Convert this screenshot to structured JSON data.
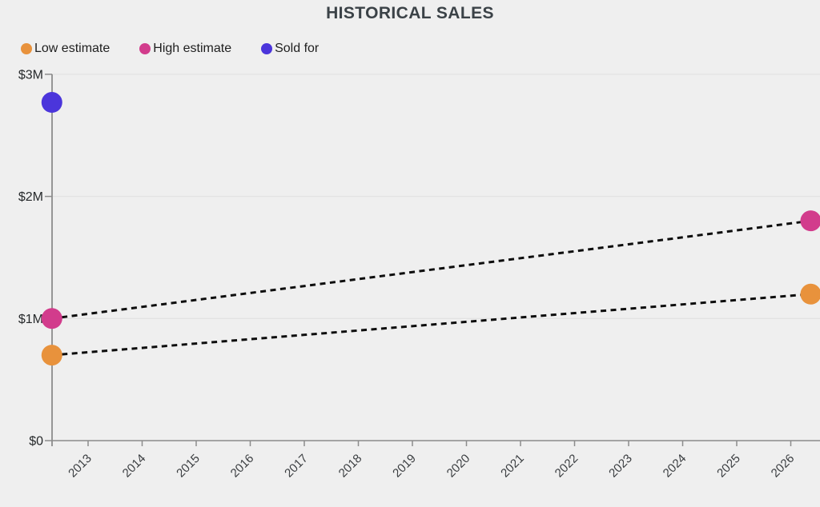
{
  "page": {
    "background": "#EFEFEF"
  },
  "chart_data": {
    "type": "scatter",
    "title": "HISTORICAL SALES",
    "xlabel": "",
    "ylabel": "",
    "x_tick_labels": [
      "2013",
      "2014",
      "2015",
      "2016",
      "2017",
      "2018",
      "2019",
      "2020",
      "2021",
      "2022",
      "2023",
      "2024",
      "2025",
      "2026"
    ],
    "y_tick_labels": [
      "$0",
      "$1M",
      "$2M",
      "$3M"
    ],
    "y_tick_values_millions": [
      0,
      1,
      2,
      3
    ],
    "ylim_millions": [
      0,
      3
    ],
    "grid": "horizontal",
    "legend_position": "top-left",
    "connector_line": {
      "color": "#0D0D0D",
      "style": "dashed"
    },
    "axis_color": "#8C8C8C",
    "gridline_color": "#E3E3E3",
    "series": [
      {
        "name": "Low estimate",
        "color": "#E8923C",
        "style": "dashed-line-with-dots",
        "points": [
          {
            "year": 2012.33,
            "value_usd_millions": 0.7
          },
          {
            "year": 2026.37,
            "value_usd_millions": 1.2
          }
        ]
      },
      {
        "name": "High estimate",
        "color": "#D23C8C",
        "style": "dashed-line-with-dots",
        "points": [
          {
            "year": 2012.33,
            "value_usd_millions": 1.0
          },
          {
            "year": 2026.37,
            "value_usd_millions": 1.8
          }
        ]
      },
      {
        "name": "Sold for",
        "color": "#4B35DB",
        "style": "dot-only",
        "points": [
          {
            "year": 2012.33,
            "value_usd_millions": 2.77
          }
        ]
      }
    ]
  }
}
